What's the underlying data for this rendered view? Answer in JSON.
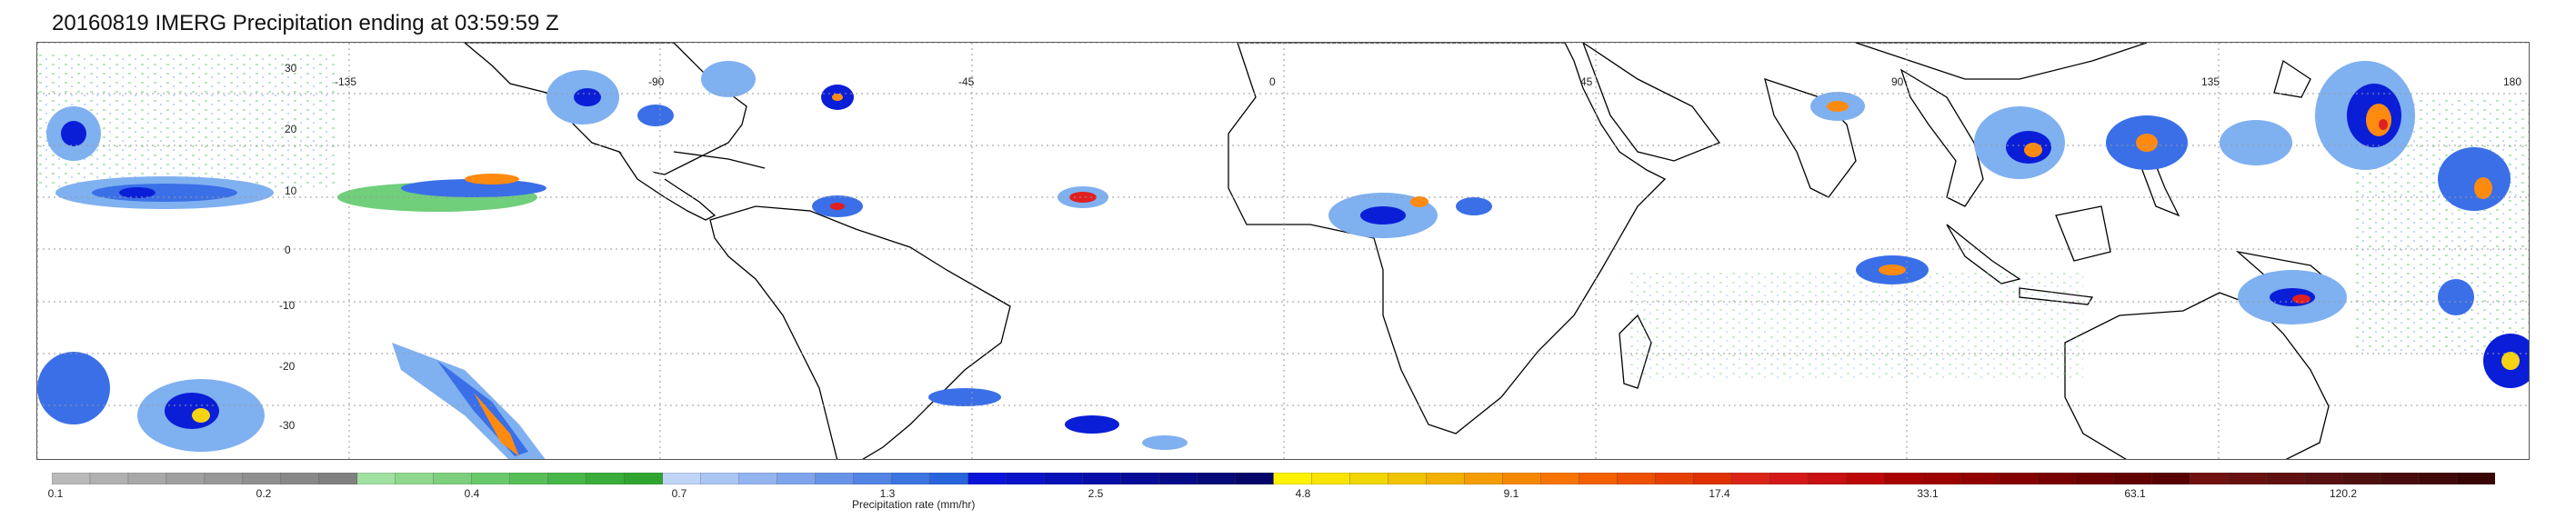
{
  "title": "20160819 IMERG Precipitation ending at 03:59:59 Z",
  "map": {
    "lat_labels": [
      "30",
      "20",
      "10",
      "0",
      "-10",
      "-20",
      "-30"
    ],
    "lon_labels": [
      "-135",
      "-90",
      "-45",
      "0",
      "45",
      "90",
      "135",
      "180"
    ],
    "land_color": "#ffffff",
    "coast_color": "#000000",
    "grid_style": "dotted",
    "rain_colors": [
      "#9f9f9f",
      "#6fcf7a",
      "#7fb0f0",
      "#3a6fe8",
      "#0a1ed8",
      "#f5d313",
      "#ff8a10",
      "#e02020"
    ]
  },
  "colorbar": {
    "tick_labels": [
      "0.1",
      "0.2",
      "0.4",
      "0.7",
      "1.3",
      "2.5",
      "4.8",
      "9.1",
      "17.4",
      "33.1",
      "63.1",
      "120.2"
    ],
    "label": "Precipitation rate (mm/hr)",
    "segments": [
      "#b9b9b9",
      "#b0b0b0",
      "#a8a8a8",
      "#a0a0a0",
      "#989898",
      "#909090",
      "#888888",
      "#808080",
      "#a0e0a0",
      "#8ed88e",
      "#7ccf7c",
      "#6ac86a",
      "#58bf58",
      "#48b648",
      "#3aad3a",
      "#2fa52f",
      "#c0d4f8",
      "#aac4f4",
      "#94b4f0",
      "#7ea4ec",
      "#6894e8",
      "#5284e4",
      "#3c74e0",
      "#2864dc",
      "#0a14d8",
      "#0912c8",
      "#0810b8",
      "#070ea8",
      "#060c98",
      "#050a88",
      "#040878",
      "#030668",
      "#fff200",
      "#f8e400",
      "#f2d600",
      "#f0c400",
      "#f2b000",
      "#f49c00",
      "#f68800",
      "#f87400",
      "#f26000",
      "#ec5000",
      "#e64000",
      "#e03000",
      "#da2418",
      "#d41818",
      "#c81010",
      "#bc0808",
      "#a80000",
      "#9c0000",
      "#900000",
      "#840000",
      "#780000",
      "#6c0000",
      "#620000",
      "#580000",
      "#701010",
      "#681010",
      "#601010",
      "#581010",
      "#501010",
      "#480c0c",
      "#400808",
      "#380404"
    ]
  }
}
